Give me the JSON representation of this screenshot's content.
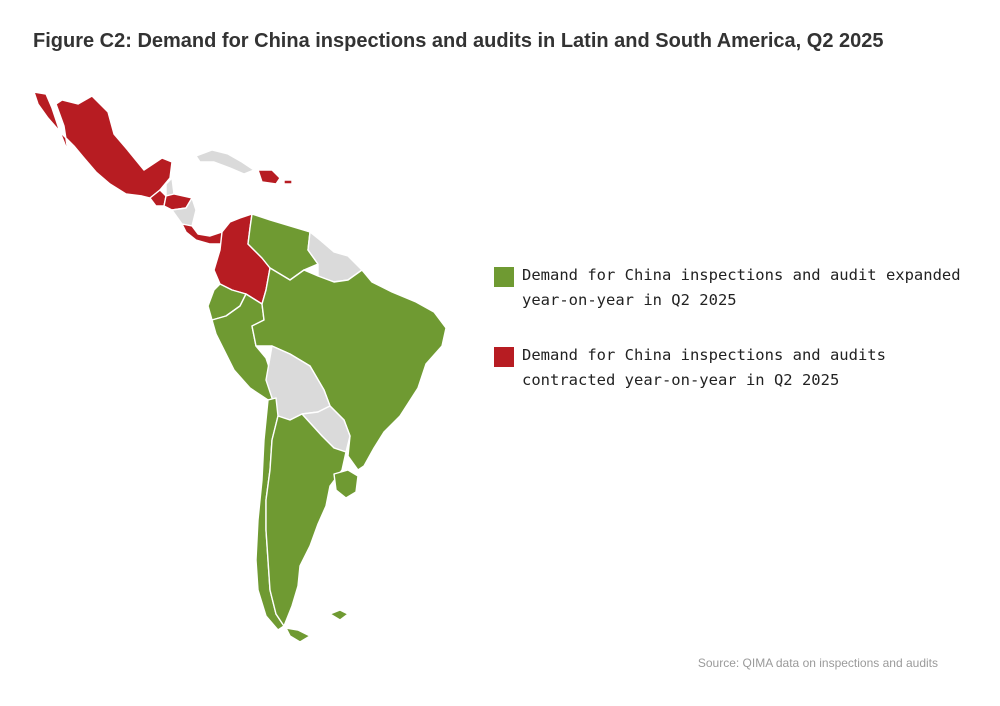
{
  "title": "Figure C2: Demand for China inspections and audits in Latin and South America, Q2 2025",
  "colors": {
    "expanded": "#6f9a32",
    "contracted": "#b71c22",
    "no_data": "#dadada"
  },
  "legend": [
    {
      "key": "expanded",
      "label": "Demand for China inspections and audit expanded year-on-year in Q2 2025"
    },
    {
      "key": "contracted",
      "label": "Demand for China inspections and audits contracted year-on-year in Q2 2025"
    }
  ],
  "source": "Source: QIMA data on inspections and audits"
}
